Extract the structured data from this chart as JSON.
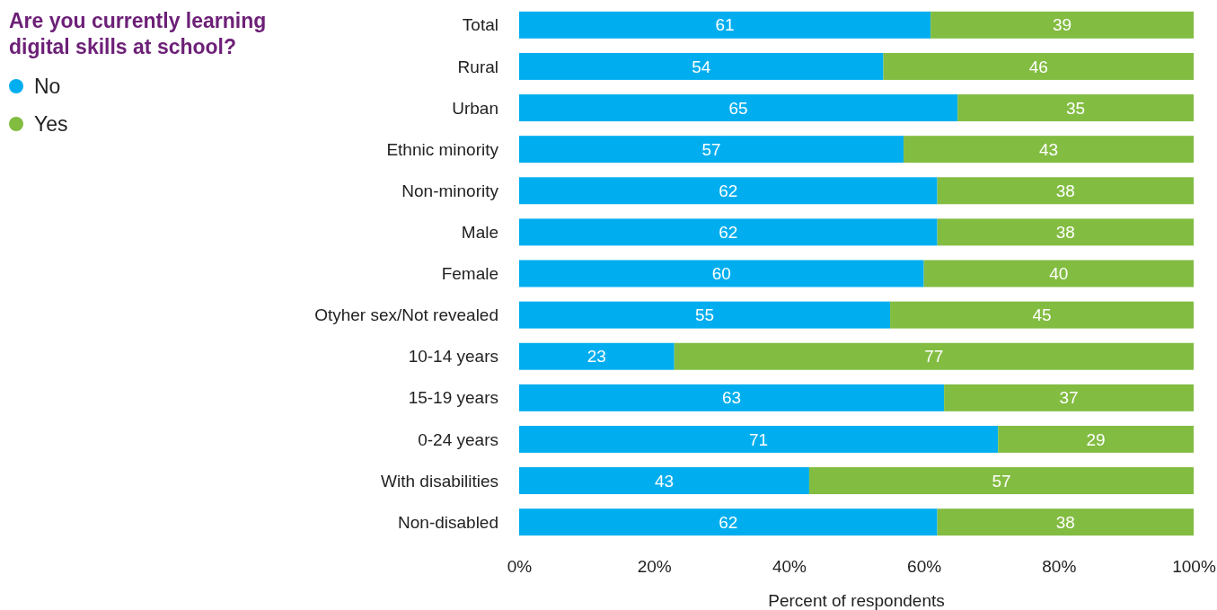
{
  "chart_data": {
    "type": "bar",
    "orientation": "horizontal",
    "stacked": true,
    "title": "Are you currently learning digital skills at school?",
    "xlabel": "Percent of respondents",
    "categories": [
      "Total",
      "Rural",
      "Urban",
      "Ethnic minority",
      "Non-minority",
      "Male",
      "Female",
      "Otyher sex/Not revealed",
      "10-14 years",
      "15-19 years",
      "0-24 years",
      "With disabilities",
      "Non-disabled"
    ],
    "series": [
      {
        "name": "No",
        "color": "#00aeef",
        "values": [
          61,
          54,
          65,
          57,
          62,
          62,
          60,
          55,
          23,
          63,
          71,
          43,
          62
        ]
      },
      {
        "name": "Yes",
        "color": "#82bc41",
        "values": [
          39,
          46,
          35,
          43,
          38,
          38,
          40,
          45,
          77,
          37,
          29,
          57,
          38
        ]
      }
    ],
    "xlim": [
      0,
      100
    ],
    "xticks": [
      {
        "value": 0,
        "label": "0%"
      },
      {
        "value": 20,
        "label": "20%"
      },
      {
        "value": 40,
        "label": "40%"
      },
      {
        "value": 60,
        "label": "60%"
      },
      {
        "value": 80,
        "label": "80%"
      },
      {
        "value": 100,
        "label": "100%"
      }
    ],
    "data_labels": true,
    "legend": "top left",
    "grid": false
  }
}
